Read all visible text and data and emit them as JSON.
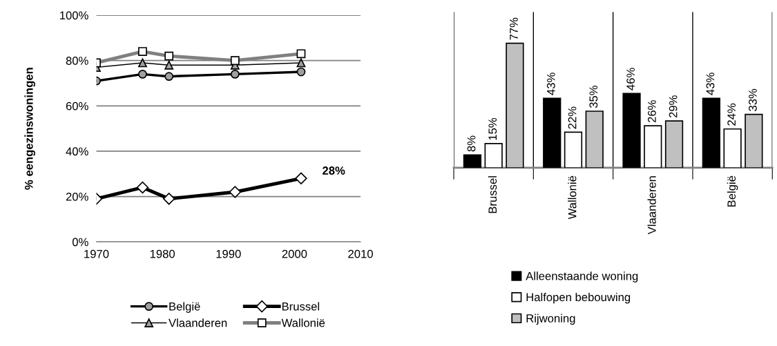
{
  "chart_data": [
    {
      "type": "line",
      "ylabel": "% eengezinswoningen",
      "xlim": [
        1970,
        2010
      ],
      "xticks": [
        1970,
        1980,
        1990,
        2000,
        2010
      ],
      "ylim": [
        0,
        100
      ],
      "yticks": [
        {
          "value": 0,
          "label": "0%"
        },
        {
          "value": 20,
          "label": "20%"
        },
        {
          "value": 40,
          "label": "40%"
        },
        {
          "value": 60,
          "label": "60%"
        },
        {
          "value": 80,
          "label": "80%"
        },
        {
          "value": 100,
          "label": "100%"
        }
      ],
      "grid": "y",
      "legend": "bottom",
      "x": [
        1970,
        1977,
        1981,
        1991,
        2001
      ],
      "series": [
        {
          "name": "België",
          "color": "#000000",
          "marker": "circle",
          "values": [
            71,
            74,
            73,
            74,
            75
          ]
        },
        {
          "name": "Brussel",
          "color": "#000000",
          "marker": "diamond",
          "values": [
            19,
            24,
            19,
            22,
            28
          ]
        },
        {
          "name": "Vlaanderen",
          "color": "#000000",
          "marker": "triangle",
          "values": [
            77,
            79,
            78,
            78,
            79
          ]
        },
        {
          "name": "Wallonië",
          "color": "#808080",
          "marker": "square",
          "values": [
            79,
            84,
            82,
            80,
            83
          ]
        }
      ],
      "annotations": [
        {
          "text": "28%",
          "x": 2001,
          "y": 28
        }
      ]
    },
    {
      "type": "bar",
      "categories": [
        "Brussel",
        "Wallonië",
        "Vlaanderen",
        "België"
      ],
      "tick_labels": "x",
      "grid": "x",
      "legend": "bottom left",
      "series": [
        {
          "name": "Alleenstaande woning",
          "color": "#000000",
          "values": [
            8,
            43,
            46,
            43
          ],
          "value_labels": [
            "8%",
            "43%",
            "46%",
            "43%"
          ]
        },
        {
          "name": "Halfopen bebouwing",
          "color": "#ffffff",
          "values": [
            15,
            22,
            26,
            24
          ],
          "value_labels": [
            "15%",
            "22%",
            "26%",
            "24%"
          ]
        },
        {
          "name": "Rijwoning",
          "color": "#c0c0c0",
          "values": [
            77,
            35,
            29,
            33
          ],
          "value_labels": [
            "77%",
            "35%",
            "29%",
            "33%"
          ]
        }
      ]
    }
  ]
}
